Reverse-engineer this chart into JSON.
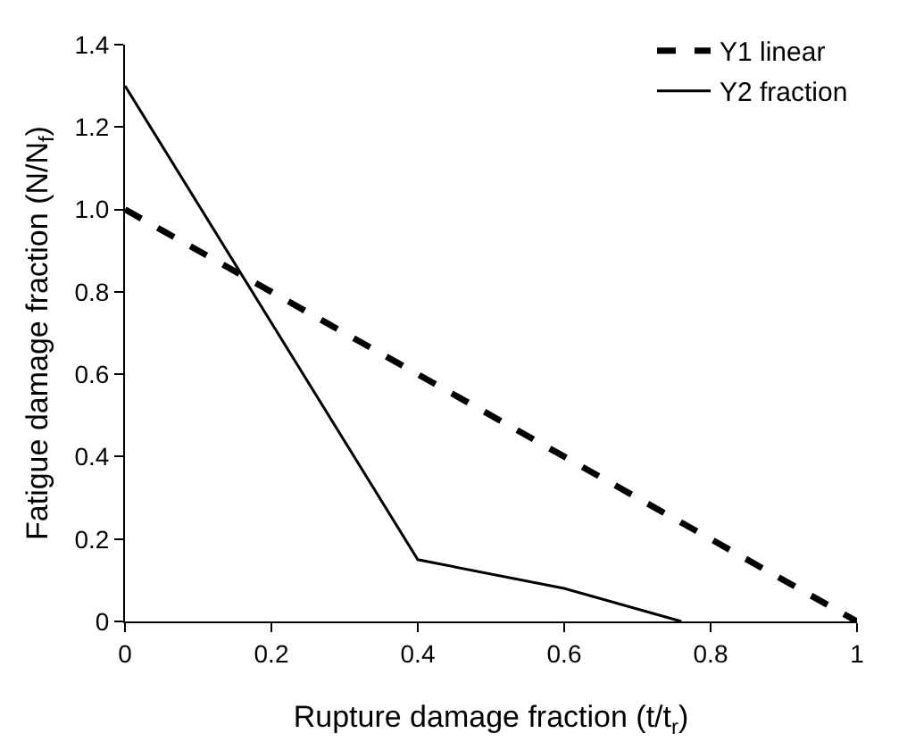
{
  "chart_data": {
    "type": "line",
    "xlabel": "Rupture damage fraction (t/t$_{r}$)",
    "ylabel": "Fatigue damage fraction (N/N$_{f}$)",
    "xlim": [
      0,
      1
    ],
    "xticks": [
      0,
      0.2,
      0.4,
      0.6,
      0.8,
      1
    ],
    "ylim": [
      0,
      1.4
    ],
    "yticks": [
      0,
      0.2,
      0.4,
      0.6,
      0.8,
      {
        "value": 1,
        "label": "1.0"
      },
      1.2,
      1.4
    ],
    "legend": "top right",
    "marker": "none",
    "series": [
      {
        "name": "Y1 linear",
        "color": "#000000",
        "line_style": "dashed",
        "x": [
          0,
          0.2,
          0.4,
          0.6,
          0.8,
          1
        ],
        "values": [
          1,
          0.8,
          0.6,
          0.4,
          0.2,
          0
        ]
      },
      {
        "name": "Y2 fraction",
        "color": "#000000",
        "line_style": "solid",
        "x": [
          0,
          0.4,
          0.6,
          0.76
        ],
        "values": [
          1.3,
          0.15,
          0.08,
          0
        ]
      }
    ]
  }
}
